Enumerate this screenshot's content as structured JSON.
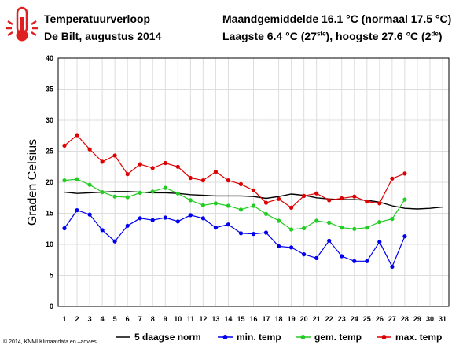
{
  "header": {
    "title": "Temperatuurverloop",
    "subtitle": "De Bilt, augustus 2014",
    "month_avg": "Maandgemiddelde 16.1 °C (normaal 17.5 °C)",
    "extremes": {
      "lowest": "Laagste 6.4 °C (27",
      "lowest_sup": "ste",
      "sep": "), hoogste 27.6 °C (2",
      "highest_sup": "de",
      "close": ")"
    }
  },
  "copyright": "© 2014, KNMI Klimaatdata en –advies",
  "colors": {
    "norm": "#000000",
    "min": "#0000ee",
    "gem": "#22cc22",
    "max": "#dd0000",
    "grid": "#dddddd",
    "icon": "#e02020"
  },
  "chart_data": {
    "type": "line",
    "ylabel": "Graden Celsius",
    "xlabel": "",
    "ylim": [
      0,
      40
    ],
    "yticks": [
      0,
      5,
      10,
      15,
      20,
      25,
      30,
      35,
      40
    ],
    "xlim": [
      0.5,
      31.5
    ],
    "x": [
      1,
      2,
      3,
      4,
      5,
      6,
      7,
      8,
      9,
      10,
      11,
      12,
      13,
      14,
      15,
      16,
      17,
      18,
      19,
      20,
      21,
      22,
      23,
      24,
      25,
      26,
      27,
      28,
      29,
      30,
      31
    ],
    "grid": true,
    "legend_position": "bottom",
    "series": [
      {
        "name": "5 daagse norm",
        "key": "norm",
        "markers": false,
        "values": [
          18.4,
          18.2,
          18.3,
          18.4,
          18.5,
          18.5,
          18.4,
          18.3,
          18.3,
          18.2,
          18.0,
          17.9,
          17.8,
          17.8,
          17.8,
          17.7,
          17.4,
          17.7,
          18.1,
          17.9,
          17.5,
          17.3,
          17.2,
          17.2,
          17.1,
          16.8,
          16.2,
          15.8,
          15.7,
          15.8,
          16.0
        ]
      },
      {
        "name": "min. temp",
        "key": "min",
        "markers": true,
        "values": [
          12.6,
          15.5,
          14.8,
          12.3,
          10.5,
          13.0,
          14.2,
          13.9,
          14.3,
          13.7,
          14.7,
          14.2,
          12.7,
          13.2,
          11.8,
          11.7,
          11.9,
          9.7,
          9.5,
          8.4,
          7.8,
          10.6,
          8.1,
          7.3,
          7.3,
          10.4,
          6.4,
          11.3,
          null,
          null,
          null
        ]
      },
      {
        "name": "gem. temp",
        "key": "gem",
        "markers": true,
        "values": [
          20.3,
          20.5,
          19.6,
          18.4,
          17.7,
          17.6,
          18.3,
          18.5,
          19.1,
          18.2,
          17.1,
          16.3,
          16.6,
          16.2,
          15.6,
          16.2,
          14.9,
          13.8,
          12.4,
          12.6,
          13.8,
          13.5,
          12.7,
          12.5,
          12.7,
          13.6,
          14.1,
          17.2,
          null,
          null,
          null
        ]
      },
      {
        "name": "max. temp",
        "key": "max",
        "markers": true,
        "values": [
          25.9,
          27.6,
          25.3,
          23.3,
          24.3,
          21.3,
          22.9,
          22.3,
          23.1,
          22.5,
          20.7,
          20.3,
          21.7,
          20.3,
          19.7,
          18.7,
          16.7,
          17.3,
          15.9,
          17.8,
          18.2,
          17.1,
          17.4,
          17.7,
          16.9,
          16.6,
          20.6,
          21.4,
          null,
          null,
          null
        ]
      }
    ]
  }
}
